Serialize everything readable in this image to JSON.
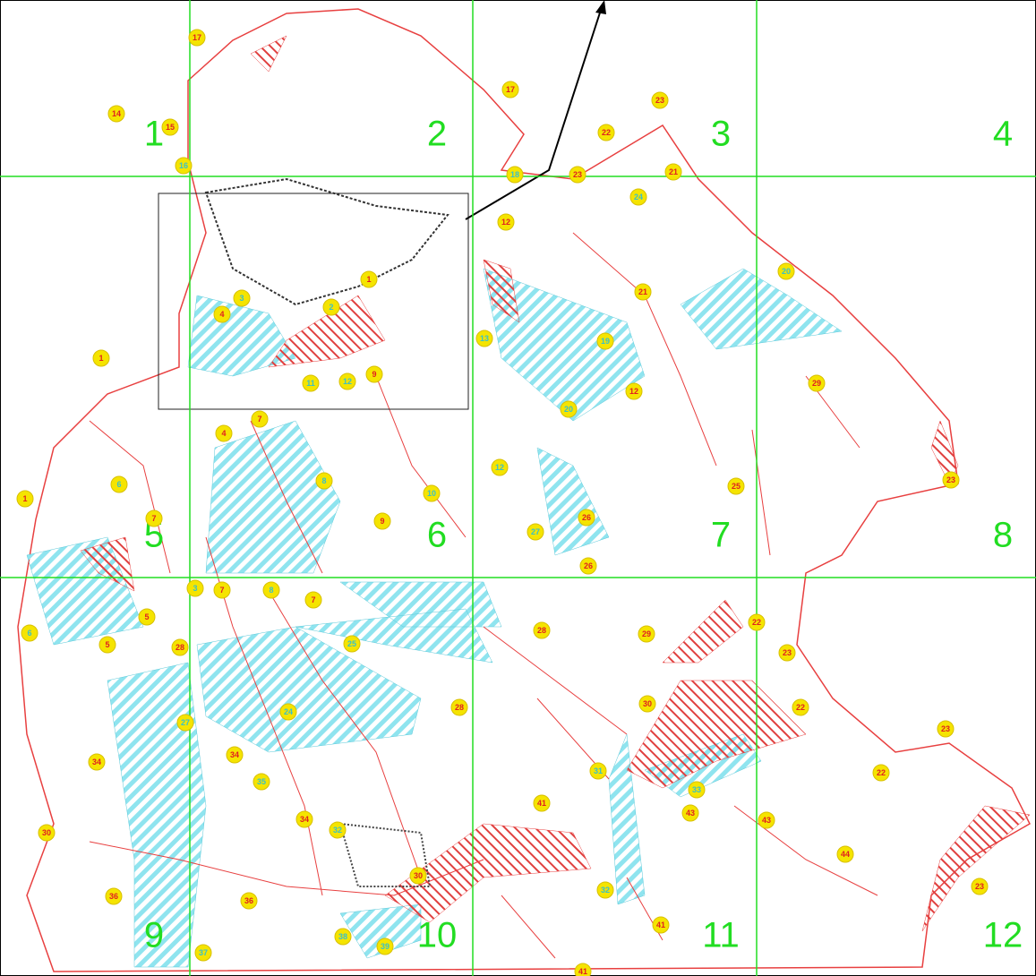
{
  "grid_labels": [
    "1",
    "2",
    "3",
    "4",
    "5",
    "6",
    "7",
    "8",
    "9",
    "10",
    "11",
    "12"
  ],
  "markers": [
    "17",
    "17",
    "14",
    "15",
    "16",
    "18",
    "23",
    "22",
    "23",
    "21",
    "24",
    "12",
    "20",
    "21",
    "1",
    "3",
    "2",
    "4",
    "13",
    "19",
    "1",
    "9",
    "11",
    "12",
    "12",
    "29",
    "20",
    "7",
    "4",
    "12",
    "6",
    "8",
    "10",
    "25",
    "23",
    "1",
    "7",
    "9",
    "26",
    "27",
    "26",
    "3",
    "7",
    "8",
    "7",
    "5",
    "22",
    "6",
    "5",
    "28",
    "25",
    "28",
    "29",
    "23",
    "30",
    "28",
    "24",
    "22",
    "27",
    "23",
    "34",
    "34",
    "31",
    "22",
    "35",
    "33",
    "41",
    "43",
    "43",
    "34",
    "32",
    "30",
    "44",
    "30",
    "23",
    "32",
    "36",
    "36",
    "41",
    "38",
    "39",
    "37",
    "41"
  ]
}
